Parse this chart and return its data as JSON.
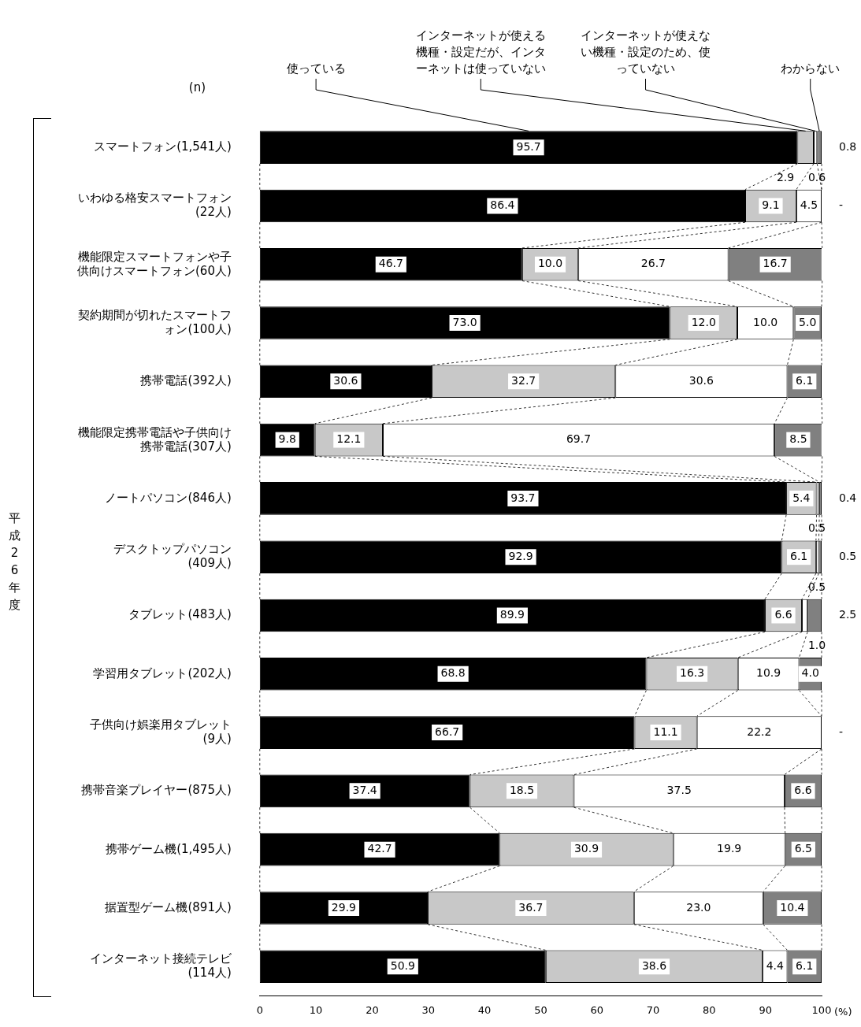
{
  "chart_data": {
    "type": "bar",
    "orientation": "horizontal",
    "stacked": true,
    "legend": "top",
    "categories": [
      "スマートフォン(1,541人)",
      "いわゆる格安スマートフォン(22人)",
      "機能限定スマートフォンや子供向けスマートフォン(60人)",
      "契約期間が切れたスマートフォン(100人)",
      "携帯電話(392人)",
      "機能限定携帯電話や子供向け携帯電話(307人)",
      "ノートパソコン(846人)",
      "デスクトップパソコン(409人)",
      "タブレット(483人)",
      "学習用タブレット(202人)",
      "子供向け娯楽用タブレット(9人)",
      "携帯音楽プレイヤー(875人)",
      "携帯ゲーム機(1,495人)",
      "据置型ゲーム機(891人)",
      "インターネット接続テレビ(114人)"
    ],
    "series": [
      {
        "name": "使っている",
        "color": "#000000",
        "values": [
          95.7,
          86.4,
          46.7,
          73.0,
          30.6,
          9.8,
          93.7,
          92.9,
          89.9,
          68.8,
          66.7,
          37.4,
          42.7,
          29.9,
          50.9
        ],
        "value_labels": [
          "95.7",
          "86.4",
          "46.7",
          "73.0",
          "30.6",
          "9.8",
          "93.7",
          "92.9",
          "89.9",
          "68.8",
          "66.7",
          "37.4",
          "42.7",
          "29.9",
          "50.9"
        ]
      },
      {
        "name": "インターネットが使える機種・設定だが、インターネットは使っていない",
        "color": "#c8c8c8",
        "values": [
          2.9,
          9.1,
          10.0,
          12.0,
          32.7,
          12.1,
          5.4,
          6.1,
          6.6,
          16.3,
          11.1,
          18.5,
          30.9,
          36.7,
          38.6
        ],
        "value_labels": [
          "2.9",
          "9.1",
          "10.0",
          "12.0",
          "32.7",
          "12.1",
          "5.4",
          "6.1",
          "6.6",
          "16.3",
          "11.1",
          "18.5",
          "30.9",
          "36.7",
          "38.6"
        ]
      },
      {
        "name": "インターネットが使えない機種・設定のため、使っていない",
        "color": "#ffffff",
        "values": [
          0.6,
          4.5,
          26.7,
          10.0,
          30.6,
          69.7,
          0.5,
          0.5,
          1.0,
          10.9,
          22.2,
          37.5,
          19.9,
          23.0,
          4.4
        ],
        "value_labels": [
          "0.6",
          "4.5",
          "26.7",
          "10.0",
          "30.6",
          "69.7",
          "0.5",
          "0.5",
          "1.0",
          "10.9",
          "22.2",
          "37.5",
          "19.9",
          "23.0",
          "4.4"
        ]
      },
      {
        "name": "わからない",
        "color": "#808080",
        "values": [
          0.8,
          0,
          16.7,
          5.0,
          6.1,
          8.5,
          0.4,
          0.5,
          2.5,
          4.0,
          0,
          6.6,
          6.5,
          10.4,
          6.1
        ],
        "value_labels": [
          "0.8",
          "-",
          "16.7",
          "5.0",
          "6.1",
          "8.5",
          "0.4",
          "0.5",
          "2.5",
          "4.0",
          "-",
          "6.6",
          "6.5",
          "10.4",
          "6.1"
        ]
      }
    ],
    "xlim": [
      0,
      100
    ],
    "xticks": [
      0,
      10,
      20,
      30,
      40,
      50,
      60,
      70,
      80,
      90,
      100
    ],
    "xlabel": "(%)",
    "grid": false,
    "annotations": [
      "(n)",
      "平成26年度"
    ]
  }
}
